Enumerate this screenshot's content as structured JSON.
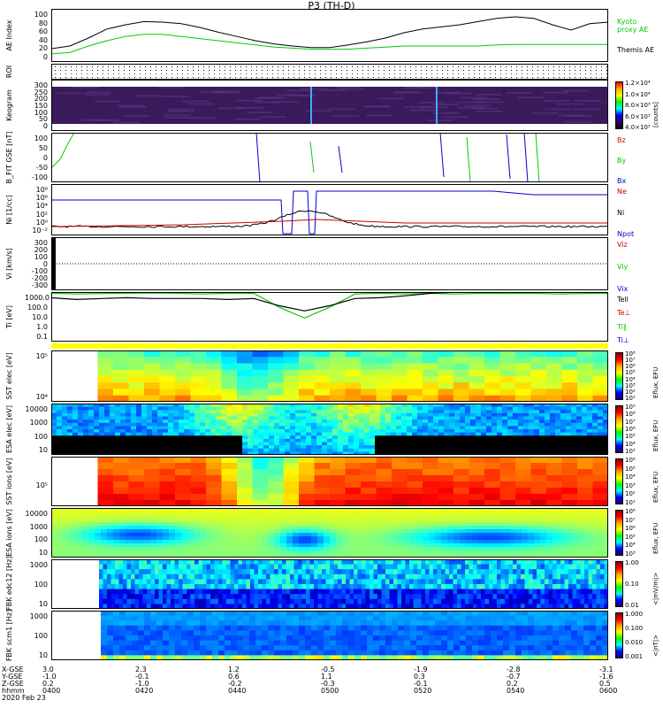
{
  "header": {
    "title": "P3 (TH-D)"
  },
  "panels": {
    "ae": {
      "ylabel": "AE Index",
      "yticks": [
        "100",
        "80",
        "60",
        "40",
        "20",
        "0"
      ],
      "legend": [
        "Kyoto",
        "proxy AE",
        "Themis AE"
      ]
    },
    "roi": {
      "ylabel": "ROI"
    },
    "keogram": {
      "ylabel": "Keogram",
      "yticks": [
        "300",
        "250",
        "200",
        "150",
        "100",
        "50",
        "0"
      ],
      "cbar_ticks": [
        "1.2×10⁴",
        "1.0×10⁴",
        "8.0×10³",
        "6.0×10³",
        "4.0×10³"
      ],
      "cbar_label": "[counts]"
    },
    "bfit": {
      "ylabel": "B_FIT GSE [nT]",
      "yticks": [
        "100",
        "50",
        "0",
        "-50",
        "-100"
      ],
      "legend": [
        "Bz",
        "By",
        "Bx"
      ]
    },
    "ni": {
      "ylabel": "Ni [1/cc]",
      "yticks": [
        "10⁸",
        "10⁶",
        "10⁴",
        "10²",
        "10⁰",
        "10⁻²"
      ],
      "legend": [
        "Ne",
        "Ni",
        "Npot"
      ]
    },
    "vi": {
      "ylabel": "Vi [km/s]",
      "yticks": [
        "300",
        "200",
        "100",
        "0",
        "-100",
        "-200",
        "-300"
      ],
      "legend": [
        "Viz",
        "Viy",
        "Vix"
      ]
    },
    "ti": {
      "ylabel": "Ti [eV]",
      "yticks": [
        "1000.0",
        "100.0",
        "10.0",
        "1.0",
        "0.1"
      ],
      "legend": [
        "Tell",
        "Te⊥",
        "Ti∥",
        "Ti⊥"
      ]
    },
    "sst_e": {
      "ylabel": "SST elec [eV]",
      "yticks": [
        "10⁵",
        "10⁴"
      ],
      "cbar_ticks": [
        "10⁸",
        "10⁷",
        "10⁶",
        "10⁵",
        "10⁴",
        "10³",
        "10²",
        "10¹"
      ],
      "cbar_label": "Eflux, EFU"
    },
    "esa_e": {
      "ylabel": "ESA elec [eV]",
      "yticks": [
        "10000",
        "1000",
        "100",
        "10"
      ],
      "cbar_ticks": [
        "10⁹",
        "10⁸",
        "10⁷",
        "10⁶",
        "10⁵",
        "10⁴",
        "10³"
      ],
      "cbar_label": "Eflux, EFU"
    },
    "sst_i": {
      "ylabel": "SST ions [eV]",
      "yticks": [
        "10⁵"
      ],
      "cbar_ticks": [
        "10⁶",
        "10⁵",
        "10⁴",
        "10³",
        "10²",
        "10¹"
      ],
      "cbar_label": "Eflux, EFU"
    },
    "esa_i": {
      "ylabel": "ESA ions [eV]",
      "yticks": [
        "10000",
        "1000",
        "100",
        "10"
      ],
      "cbar_ticks": [
        "10⁸",
        "10⁷",
        "10⁶",
        "10⁵",
        "10⁴",
        "10³"
      ],
      "cbar_label": "Eflux, EFU"
    },
    "fbk_e": {
      "ylabel": "FBK edc12 [Hz]",
      "yticks": [
        "1000",
        "100",
        "10"
      ],
      "cbar_ticks": [
        "1.00",
        "0.10",
        "0.01"
      ],
      "cbar_label": "<|mV/m|>"
    },
    "fbk_b": {
      "ylabel": "FBK scm1 [Hz]",
      "yticks": [
        "1000",
        "100",
        "10"
      ],
      "cbar_ticks": [
        "1.000",
        "0.100",
        "0.010",
        "0.001"
      ],
      "cbar_label": "<|nT|>"
    }
  },
  "xaxis": {
    "row_labels": [
      "X-GSE",
      "Y-GSE",
      "Z-GSE",
      "hhmm",
      "2020 Feb 23"
    ],
    "ticks": [
      {
        "x": "3.0",
        "y": "-1.0",
        "z": "0.2",
        "t": "0400"
      },
      {
        "x": "2.3",
        "y": "-0.1",
        "z": "-1.0",
        "t": "0420"
      },
      {
        "x": "1.2",
        "y": "0.6",
        "z": "-0.2",
        "t": "0440"
      },
      {
        "x": "-0.5",
        "y": "1.1",
        "z": "-0.3",
        "t": "0500"
      },
      {
        "x": "-1.9",
        "y": "0.3",
        "z": "-0.1",
        "t": "0520"
      },
      {
        "x": "-2.8",
        "y": "-0.7",
        "z": "0.2",
        "t": "0540"
      },
      {
        "x": "-3.1",
        "y": "-1.6",
        "z": "0.5",
        "t": "0600"
      }
    ]
  },
  "chart_data": {
    "type": "line",
    "time_range": [
      "0400",
      "0600"
    ],
    "ae_index": {
      "ylim": [
        0,
        100
      ],
      "series": [
        {
          "name": "Kyoto proxy AE",
          "color": "#00cc00",
          "values": [
            15,
            18,
            30,
            40,
            48,
            52,
            52,
            48,
            44,
            40,
            36,
            32,
            28,
            26,
            24,
            24,
            24,
            26,
            28,
            30,
            30,
            30,
            30,
            30,
            32,
            33,
            33,
            33,
            33,
            33,
            33
          ]
        },
        {
          "name": "Themis AE",
          "color": "#000000",
          "values": [
            25,
            30,
            45,
            62,
            70,
            76,
            75,
            72,
            65,
            56,
            48,
            40,
            34,
            30,
            27,
            27,
            32,
            38,
            45,
            55,
            62,
            66,
            70,
            76,
            82,
            85,
            82,
            70,
            60,
            72,
            75
          ]
        }
      ]
    },
    "ti": {
      "ylim_log": [
        0.1,
        1000
      ],
      "series": [
        {
          "name": "Ti∥",
          "color": "#00cc00",
          "values": [
            800,
            700,
            750,
            800,
            850,
            800,
            700,
            800,
            800,
            60,
            8,
            60,
            700,
            800,
            700,
            800,
            700,
            800,
            750,
            800,
            700,
            750,
            800
          ]
        },
        {
          "name": "Tell",
          "color": "#000000",
          "values": [
            350,
            250,
            300,
            350,
            300,
            300,
            300,
            250,
            300,
            80,
            30,
            80,
            300,
            350,
            500,
            800,
            1000,
            1300,
            1500,
            1300,
            1200,
            1000,
            900
          ]
        }
      ]
    }
  }
}
